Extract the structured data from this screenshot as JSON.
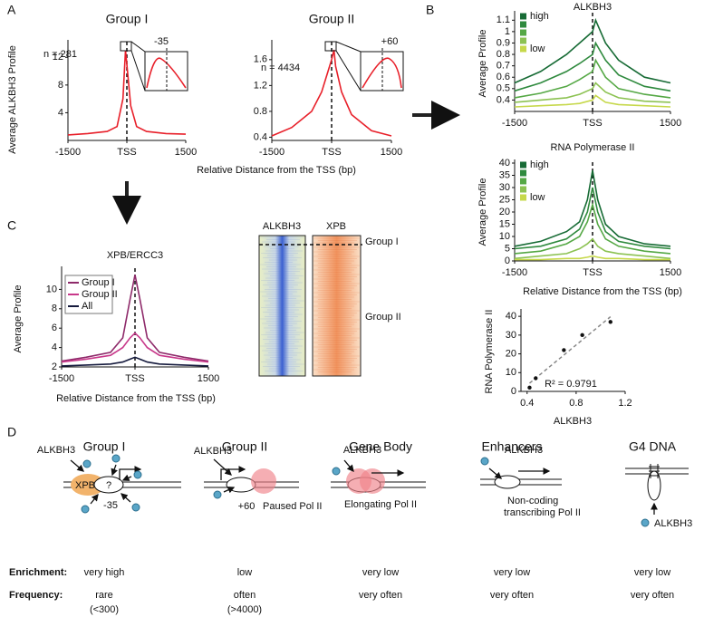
{
  "panel_labels": [
    "A",
    "B",
    "C",
    "D"
  ],
  "chart_data": [
    {
      "type": "line",
      "title": "Group I",
      "y_label": "Average ALKBH3 Profile",
      "x_label": "Relative Distance from the TSS (bp)",
      "annotation": "n = 281",
      "inset_label": "-35",
      "x": [
        -1500,
        -1000,
        -500,
        -250,
        -100,
        -35,
        0,
        100,
        250,
        500,
        1000,
        1500
      ],
      "series": [
        {
          "color": "#e8202a",
          "values": [
            0.8,
            1.0,
            1.3,
            2.0,
            6,
            13,
            11,
            5,
            2,
            1.3,
            1.0,
            0.9
          ]
        }
      ],
      "xlim": [
        -1500,
        1500
      ],
      "xticks": [
        -1500,
        {
          "value": 0,
          "label": "TSS"
        },
        1500
      ],
      "ylim": [
        0,
        14
      ],
      "yticks": [
        4,
        8,
        12
      ]
    },
    {
      "type": "line",
      "title": "Group II",
      "annotation": "n = 4434",
      "inset_label": "+60",
      "x": [
        -1500,
        -1000,
        -500,
        -250,
        -100,
        0,
        60,
        100,
        250,
        500,
        1000,
        1500
      ],
      "series": [
        {
          "color": "#e8202a",
          "values": [
            0.42,
            0.55,
            0.8,
            1.1,
            1.4,
            1.6,
            1.75,
            1.5,
            1.1,
            0.75,
            0.5,
            0.42
          ]
        }
      ],
      "xlim": [
        -1500,
        1500
      ],
      "xticks": [
        -1500,
        {
          "value": 0,
          "label": "TSS"
        },
        1500
      ],
      "ylim": [
        0.35,
        1.85
      ],
      "yticks": [
        0.4,
        0.8,
        1.2,
        1.6
      ]
    },
    {
      "type": "line",
      "title": "ALKBH3",
      "y_label": "Average Profile",
      "x": [
        -1500,
        -1000,
        -500,
        -250,
        0,
        60,
        250,
        500,
        1000,
        1500
      ],
      "series": [
        {
          "name": "high",
          "color": "#176b35",
          "values": [
            0.55,
            0.65,
            0.8,
            0.9,
            1.0,
            1.1,
            0.9,
            0.75,
            0.6,
            0.55
          ]
        },
        {
          "color": "#2f8a3e",
          "values": [
            0.48,
            0.55,
            0.65,
            0.72,
            0.8,
            0.9,
            0.75,
            0.62,
            0.52,
            0.48
          ]
        },
        {
          "color": "#55a845",
          "values": [
            0.42,
            0.46,
            0.52,
            0.58,
            0.65,
            0.75,
            0.6,
            0.5,
            0.45,
            0.42
          ]
        },
        {
          "color": "#8cc252",
          "values": [
            0.38,
            0.4,
            0.42,
            0.45,
            0.5,
            0.55,
            0.47,
            0.42,
            0.39,
            0.38
          ]
        },
        {
          "name": "low",
          "color": "#c6d84a",
          "values": [
            0.34,
            0.35,
            0.36,
            0.37,
            0.4,
            0.44,
            0.38,
            0.36,
            0.35,
            0.34
          ]
        }
      ],
      "xlim": [
        -1500,
        1500
      ],
      "xticks": [
        -1500,
        {
          "value": 0,
          "label": "TSS"
        },
        1500
      ],
      "ylim": [
        0.3,
        1.15
      ],
      "yticks": [
        0.4,
        0.5,
        0.6,
        0.7,
        0.8,
        0.9,
        1.0,
        1.1
      ]
    },
    {
      "type": "line",
      "title": "RNA Polymerase II",
      "y_label": "Average Profile",
      "x_label": "Relative Distance from the TSS (bp)",
      "x": [
        -1500,
        -1000,
        -500,
        -250,
        -100,
        0,
        100,
        250,
        500,
        1000,
        1500
      ],
      "series": [
        {
          "name": "high",
          "color": "#176b35",
          "values": [
            6,
            8,
            12,
            16,
            25,
            37,
            25,
            15,
            10,
            7,
            6
          ]
        },
        {
          "color": "#2f8a3e",
          "values": [
            5,
            6,
            9,
            13,
            20,
            30,
            20,
            12,
            8,
            6,
            5
          ]
        },
        {
          "color": "#55a845",
          "values": [
            3,
            4,
            7,
            10,
            16,
            23,
            15,
            9,
            6,
            4,
            3
          ]
        },
        {
          "color": "#8cc252",
          "values": [
            1,
            2,
            3,
            5,
            7,
            9,
            6,
            4,
            3,
            2,
            1
          ]
        },
        {
          "name": "low",
          "color": "#c6d84a",
          "values": [
            0.5,
            0.5,
            1,
            1,
            1.5,
            2,
            1.5,
            1,
            1,
            0.5,
            0.5
          ]
        }
      ],
      "xlim": [
        -1500,
        1500
      ],
      "xticks": [
        -1500,
        {
          "value": 0,
          "label": "TSS"
        },
        1500
      ],
      "ylim": [
        0,
        40
      ],
      "yticks": [
        0,
        5,
        10,
        15,
        20,
        25,
        30,
        35,
        40
      ]
    },
    {
      "type": "scatter",
      "y_label": "RNA Polymerase II",
      "x_label": "ALKBH3",
      "annotation": "R² = 0.9791",
      "x": [
        0.42,
        0.47,
        0.7,
        0.85,
        1.08
      ],
      "values": [
        2,
        7,
        22,
        30,
        37
      ],
      "color": "#111111",
      "xlim": [
        0.35,
        1.2
      ],
      "xticks": [
        0.4,
        0.8,
        1.2
      ],
      "ylim": [
        0,
        42
      ],
      "yticks": [
        0,
        10,
        20,
        30,
        40
      ]
    },
    {
      "type": "line",
      "title": "XPB/ERCC3",
      "y_label": "Average Profile",
      "x_label": "Relative Distance from the TSS (bp)",
      "x": [
        -1500,
        -1000,
        -500,
        -250,
        -100,
        0,
        100,
        250,
        500,
        1000,
        1500
      ],
      "series": [
        {
          "name": "Group I",
          "color": "#8e2a6a",
          "values": [
            2.6,
            3,
            3.5,
            5,
            9,
            11.5,
            9,
            5,
            3.5,
            3,
            2.6
          ]
        },
        {
          "name": "Group II",
          "color": "#c8388a",
          "values": [
            2.5,
            2.8,
            3.2,
            4,
            5,
            5.5,
            5,
            4,
            3.2,
            2.8,
            2.5
          ]
        },
        {
          "name": "All",
          "color": "#151a3d",
          "values": [
            2.1,
            2.2,
            2.3,
            2.5,
            2.8,
            3,
            2.8,
            2.5,
            2.3,
            2.2,
            2.1
          ]
        }
      ],
      "xlim": [
        -1500,
        1500
      ],
      "xticks": [
        -1500,
        {
          "value": 0,
          "label": "TSS"
        },
        1500
      ],
      "ylim": [
        2,
        12
      ],
      "yticks": [
        2,
        4,
        6,
        8,
        10
      ]
    }
  ],
  "heatmap": {
    "columns": [
      "ALKBH3",
      "XPB"
    ],
    "groups": [
      "Group I",
      "Group II"
    ]
  },
  "diagram": {
    "row_labels": [
      "Enrichment:",
      "Frequency:"
    ],
    "columns": [
      {
        "title": "Group I",
        "labels": [
          "ALKBH3",
          "XPB",
          "?",
          "-35"
        ],
        "enrichment": "very high",
        "frequency": [
          "rare",
          "(<300)"
        ]
      },
      {
        "title": "Group II",
        "labels": [
          "ALKBH3",
          "+60",
          "Paused Pol II"
        ],
        "enrichment": "low",
        "frequency": [
          "often",
          "(>4000)"
        ]
      },
      {
        "title": "Gene Body",
        "labels": [
          "ALKBH3",
          "Elongating Pol II"
        ],
        "enrichment": "very low",
        "frequency": [
          "very often"
        ]
      },
      {
        "title": "Enhancers",
        "labels": [
          "ALKBH3",
          "Non-coding",
          "transcribing Pol II"
        ],
        "enrichment": "very low",
        "frequency": [
          "very often"
        ]
      },
      {
        "title": "G4 DNA",
        "labels": [
          "ALKBH3"
        ],
        "enrichment": "very low",
        "frequency": [
          "very often"
        ]
      }
    ]
  }
}
